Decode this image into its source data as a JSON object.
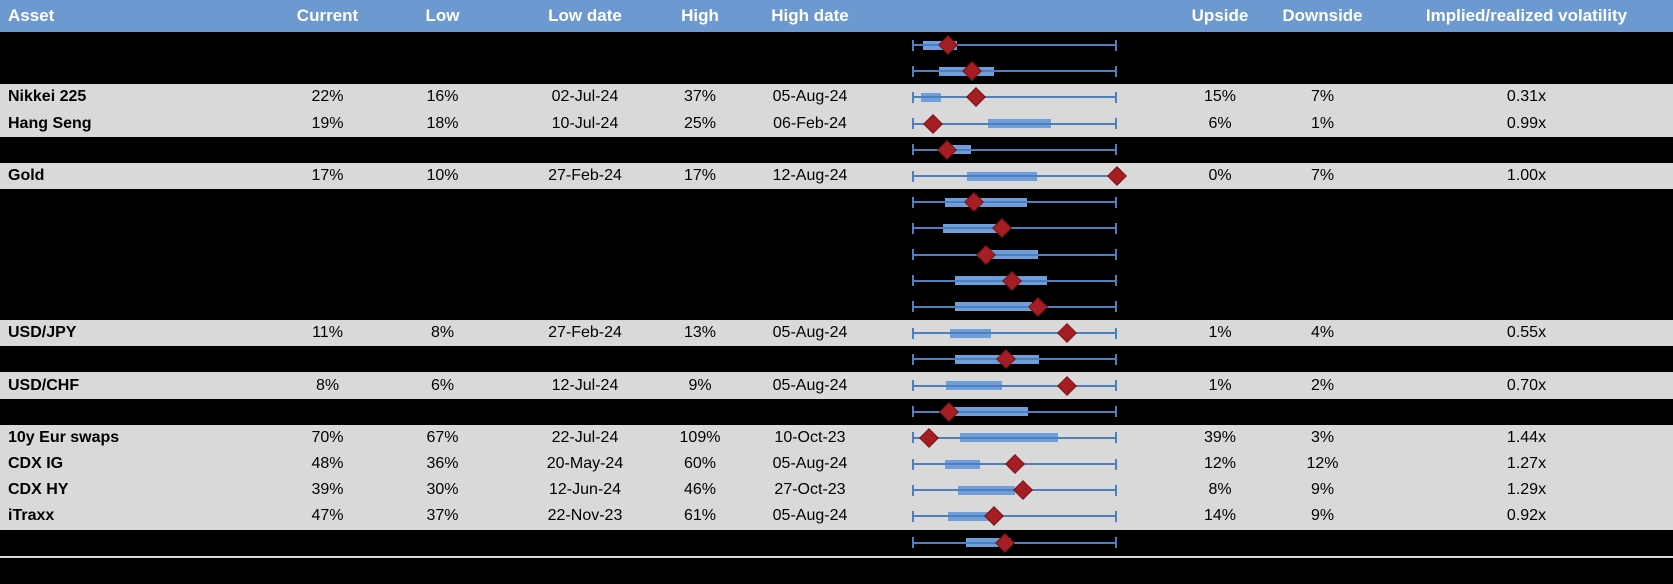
{
  "header": {
    "columns": [
      "Asset",
      "Current",
      "Low",
      "Low date",
      "High",
      "High date",
      "",
      "Upside",
      "Downside",
      "Implied/realized volatility"
    ]
  },
  "colors": {
    "header_bg": "#6C99CF",
    "header_text": "#FFFFFF",
    "data_row_bg": "#D9D9D9",
    "masked_row_bg": "#000000",
    "whisker_blue": "#4D7FBE",
    "box_blue": "#6F9FDB",
    "marker_red": "#A41E24",
    "text": "#000000"
  },
  "chart_data": {
    "type": "table",
    "title": "Implied volatility summary with 1-year range box plots",
    "columns": [
      "Asset",
      "Current",
      "Low",
      "Low date",
      "High",
      "High date",
      "1y range plot",
      "Upside",
      "Downside",
      "Implied/realized volatility"
    ],
    "range_plot_legend": {
      "box": "interquartile range of 1y implied volatility (normalized 0-100 across whisker span)",
      "whisker": "full 1y low-to-high range",
      "diamond": "current level"
    },
    "axis_range_pct": [
      0,
      100
    ],
    "rows": [
      {
        "masked": true,
        "asset": "",
        "current": "",
        "low": "",
        "low_date": "",
        "high": "",
        "high_date": "",
        "upside": "",
        "downside": "",
        "vol": "",
        "plot": {
          "box_lo": 5.5,
          "box_hi": 22,
          "current": 17.5
        }
      },
      {
        "masked": true,
        "asset": "",
        "current": "",
        "low": "",
        "low_date": "",
        "high": "",
        "high_date": "",
        "upside": "",
        "downside": "",
        "vol": "",
        "plot": {
          "box_lo": 13,
          "box_hi": 40,
          "current": 29.5
        }
      },
      {
        "masked": false,
        "asset": "Nikkei 225",
        "current": "22%",
        "low": "16%",
        "low_date": "02-Jul-24",
        "high": "37%",
        "high_date": "05-Aug-24",
        "upside": "15%",
        "downside": "7%",
        "vol": "0.31x",
        "plot": {
          "box_lo": 4.5,
          "box_hi": 14,
          "current": 31
        }
      },
      {
        "masked": false,
        "asset": "Hang Seng",
        "current": "19%",
        "low": "18%",
        "low_date": "10-Jul-24",
        "high": "25%",
        "high_date": "06-Feb-24",
        "upside": "6%",
        "downside": "1%",
        "vol": "0.99x",
        "plot": {
          "box_lo": 37,
          "box_hi": 68,
          "current": 10
        }
      },
      {
        "masked": true,
        "asset": "",
        "current": "",
        "low": "",
        "low_date": "",
        "high": "",
        "high_date": "",
        "upside": "",
        "downside": "",
        "vol": "",
        "plot": {
          "box_lo": 15,
          "box_hi": 29,
          "current": 17
        }
      },
      {
        "masked": false,
        "asset": "Gold",
        "current": "17%",
        "low": "10%",
        "low_date": "27-Feb-24",
        "high": "17%",
        "high_date": "12-Aug-24",
        "upside": "0%",
        "downside": "7%",
        "vol": "1.00x",
        "plot": {
          "box_lo": 27,
          "box_hi": 61,
          "current": 100
        }
      },
      {
        "masked": true,
        "asset": "",
        "current": "",
        "low": "",
        "low_date": "",
        "high": "",
        "high_date": "",
        "upside": "",
        "downside": "",
        "vol": "",
        "plot": {
          "box_lo": 16,
          "box_hi": 56,
          "current": 30
        }
      },
      {
        "masked": true,
        "asset": "",
        "current": "",
        "low": "",
        "low_date": "",
        "high": "",
        "high_date": "",
        "upside": "",
        "downside": "",
        "vol": "",
        "plot": {
          "box_lo": 15,
          "box_hi": 41.5,
          "current": 44
        }
      },
      {
        "masked": true,
        "asset": "",
        "current": "",
        "low": "",
        "low_date": "",
        "high": "",
        "high_date": "",
        "upside": "",
        "downside": "",
        "vol": "",
        "plot": {
          "box_lo": 38,
          "box_hi": 61.5,
          "current": 36
        }
      },
      {
        "masked": true,
        "asset": "",
        "current": "",
        "low": "",
        "low_date": "",
        "high": "",
        "high_date": "",
        "upside": "",
        "downside": "",
        "vol": "",
        "plot": {
          "box_lo": 21,
          "box_hi": 66,
          "current": 49
        }
      },
      {
        "masked": true,
        "asset": "",
        "current": "",
        "low": "",
        "low_date": "",
        "high": "",
        "high_date": "",
        "upside": "",
        "downside": "",
        "vol": "",
        "plot": {
          "box_lo": 21,
          "box_hi": 58.5,
          "current": 61.5
        }
      },
      {
        "masked": false,
        "asset": "USD/JPY",
        "current": "11%",
        "low": "8%",
        "low_date": "27-Feb-24",
        "high": "13%",
        "high_date": "05-Aug-24",
        "upside": "1%",
        "downside": "4%",
        "vol": "0.55x",
        "plot": {
          "box_lo": 18.5,
          "box_hi": 38.5,
          "current": 75.5
        }
      },
      {
        "masked": true,
        "asset": "",
        "current": "",
        "low": "",
        "low_date": "",
        "high": "",
        "high_date": "",
        "upside": "",
        "downside": "",
        "vol": "",
        "plot": {
          "box_lo": 21,
          "box_hi": 62,
          "current": 46
        }
      },
      {
        "masked": false,
        "asset": "USD/CHF",
        "current": "8%",
        "low": "6%",
        "low_date": "12-Jul-24",
        "high": "9%",
        "high_date": "05-Aug-24",
        "upside": "1%",
        "downside": "2%",
        "vol": "0.70x",
        "plot": {
          "box_lo": 16.5,
          "box_hi": 44,
          "current": 75.5
        }
      },
      {
        "masked": true,
        "asset": "",
        "current": "",
        "low": "",
        "low_date": "",
        "high": "",
        "high_date": "",
        "upside": "",
        "downside": "",
        "vol": "",
        "plot": {
          "box_lo": 18,
          "box_hi": 56.5,
          "current": 18
        }
      },
      {
        "masked": false,
        "asset": "10y Eur swaps",
        "current": "70%",
        "low": "67%",
        "low_date": "22-Jul-24",
        "high": "109%",
        "high_date": "10-Oct-23",
        "upside": "39%",
        "downside": "3%",
        "vol": "1.44x",
        "plot": {
          "box_lo": 23.5,
          "box_hi": 71,
          "current": 8.5
        }
      },
      {
        "masked": false,
        "asset": "CDX IG",
        "current": "48%",
        "low": "36%",
        "low_date": "20-May-24",
        "high": "60%",
        "high_date": "05-Aug-24",
        "upside": "12%",
        "downside": "12%",
        "vol": "1.27x",
        "plot": {
          "box_lo": 16,
          "box_hi": 33,
          "current": 50
        }
      },
      {
        "masked": false,
        "asset": "CDX HY",
        "current": "39%",
        "low": "30%",
        "low_date": "12-Jun-24",
        "high": "46%",
        "high_date": "27-Oct-23",
        "upside": "8%",
        "downside": "9%",
        "vol": "1.29x",
        "plot": {
          "box_lo": 22.5,
          "box_hi": 50,
          "current": 54
        }
      },
      {
        "masked": false,
        "asset": "iTraxx",
        "current": "47%",
        "low": "37%",
        "low_date": "22-Nov-23",
        "high": "61%",
        "high_date": "05-Aug-24",
        "upside": "14%",
        "downside": "9%",
        "vol": "0.92x",
        "plot": {
          "box_lo": 17.5,
          "box_hi": 41.5,
          "current": 40
        }
      },
      {
        "masked": true,
        "asset": "",
        "current": "",
        "low": "",
        "low_date": "",
        "high": "",
        "high_date": "",
        "upside": "",
        "downside": "",
        "vol": "",
        "plot": {
          "box_lo": 26.5,
          "box_hi": 48.5,
          "current": 45.5
        }
      }
    ]
  }
}
